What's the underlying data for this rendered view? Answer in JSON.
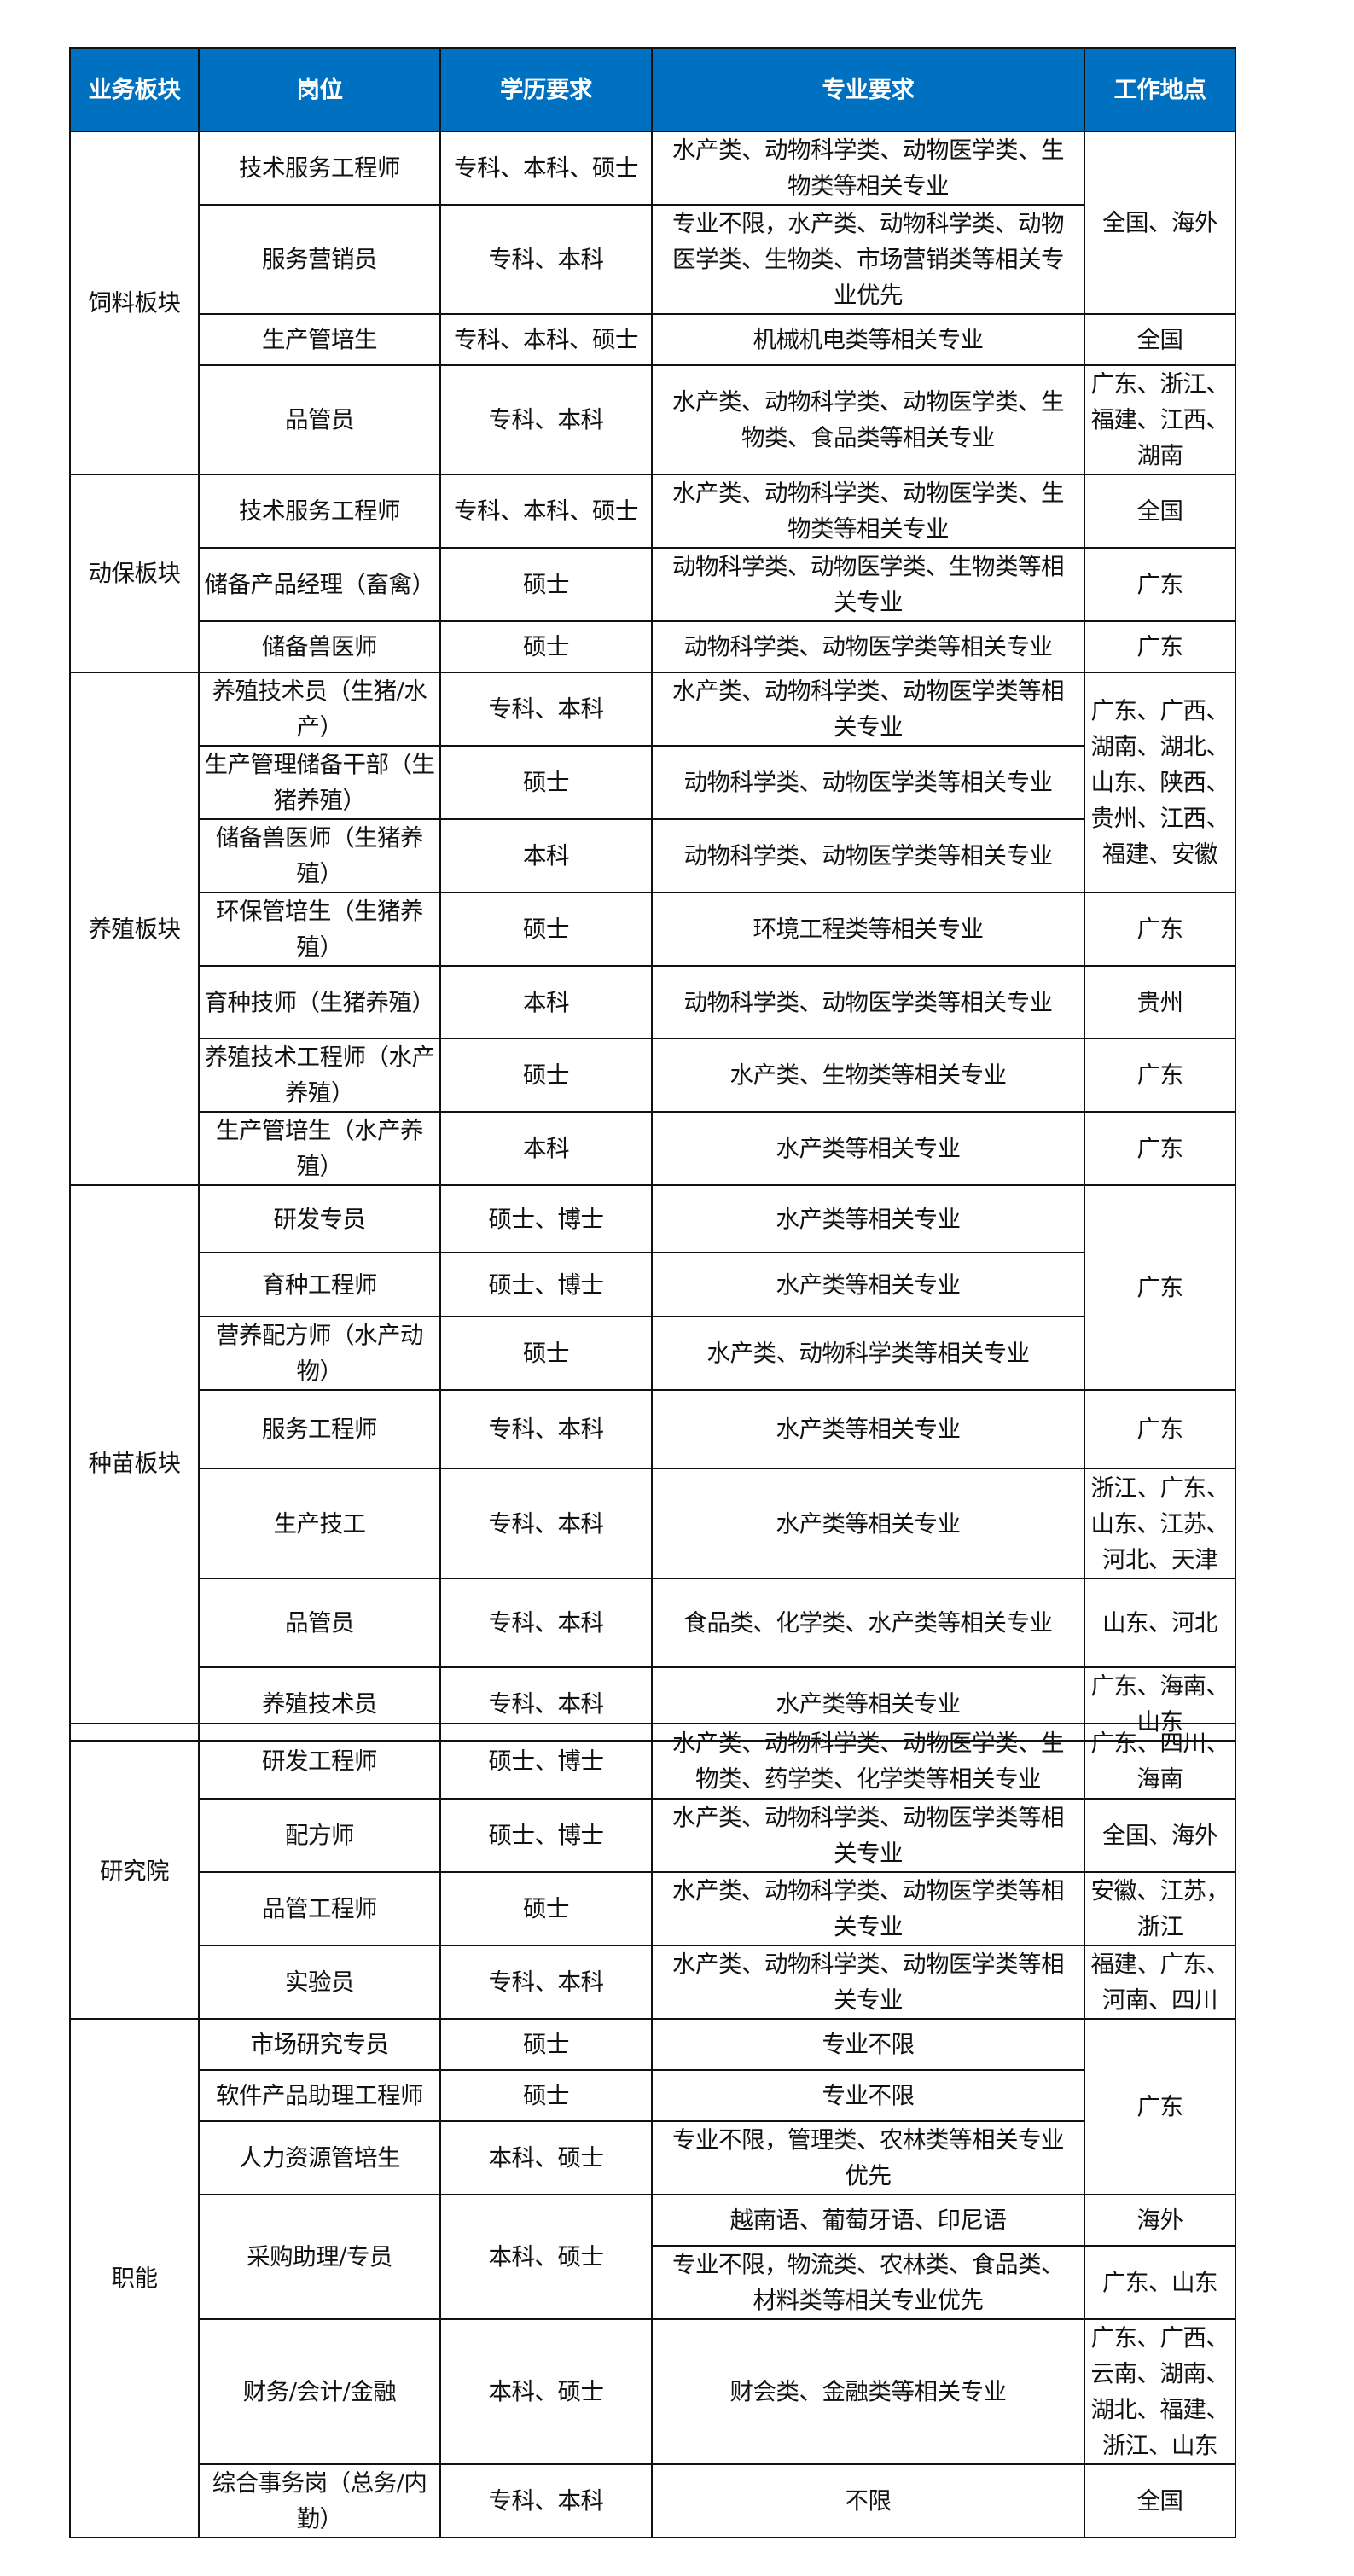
{
  "header": {
    "accent_color": "#0070c0",
    "columns": [
      "业务板块",
      "岗位",
      "学历要求",
      "专业要求",
      "工作地点"
    ]
  },
  "sections": [
    {
      "name": "饲料板块",
      "rows": [
        {
          "position": "技术服务工程师",
          "education": "专科、本科、硕士",
          "major": "水产类、动物科学类、动物医学类、生物类等相关专业",
          "location": "全国、海外",
          "location_rowspan": 2
        },
        {
          "position": "服务营销员",
          "education": "专科、本科",
          "major": "专业不限，水产类、动物科学类、动物医学类、生物类、市场营销类等相关专业优先"
        },
        {
          "position": "生产管培生",
          "education": "专科、本科、硕士",
          "major": "机械机电类等相关专业",
          "location": "全国"
        },
        {
          "position": "品管员",
          "education": "专科、本科",
          "major": "水产类、动物科学类、动物医学类、生物类、食品类等相关专业",
          "location": "广东、浙江、福建、江西、湖南"
        }
      ]
    },
    {
      "name": "动保板块",
      "rows": [
        {
          "position": "技术服务工程师",
          "education": "专科、本科、硕士",
          "major": "水产类、动物科学类、动物医学类、生物类等相关专业",
          "location": "全国"
        },
        {
          "position": "储备产品经理（畜禽）",
          "education": "硕士",
          "major": "动物科学类、动物医学类、生物类等相关专业",
          "location": "广东"
        },
        {
          "position": "储备兽医师",
          "education": "硕士",
          "major": "动物科学类、动物医学类等相关专业",
          "location": "广东"
        }
      ]
    },
    {
      "name": "养殖板块",
      "rows": [
        {
          "position": "养殖技术员（生猪/水产）",
          "education": "专科、本科",
          "major": "水产类、动物科学类、动物医学类等相关专业",
          "location": "广东、广西、湖南、湖北、山东、陕西、贵州、江西、福建、安徽",
          "location_rowspan": 3
        },
        {
          "position": "生产管理储备干部（生猪养殖）",
          "education": "硕士",
          "major": "动物科学类、动物医学类等相关专业"
        },
        {
          "position": "储备兽医师（生猪养殖）",
          "education": "本科",
          "major": "动物科学类、动物医学类等相关专业"
        },
        {
          "position": "环保管培生（生猪养殖）",
          "education": "硕士",
          "major": "环境工程类等相关专业",
          "location": "广东"
        },
        {
          "position": "育种技师（生猪养殖）",
          "education": "本科",
          "major": "动物科学类、动物医学类等相关专业",
          "location": "贵州"
        },
        {
          "position": "养殖技术工程师（水产养殖）",
          "education": "硕士",
          "major": "水产类、生物类等相关专业",
          "location": "广东"
        },
        {
          "position": "生产管培生（水产养殖）",
          "education": "本科",
          "major": "水产类等相关专业",
          "location": "广东"
        }
      ]
    },
    {
      "name": "种苗板块",
      "rows": [
        {
          "position": "研发专员",
          "education": "硕士、博士",
          "major": "水产类等相关专业",
          "location": "广东",
          "location_rowspan": 3
        },
        {
          "position": "育种工程师",
          "education": "硕士、博士",
          "major": "水产类等相关专业"
        },
        {
          "position": "营养配方师（水产动物）",
          "education": "硕士",
          "major": "水产类、动物科学类等相关专业"
        },
        {
          "position": "服务工程师",
          "education": "专科、本科",
          "major": "水产类等相关专业",
          "location": "广东"
        },
        {
          "position": "生产技工",
          "education": "专科、本科",
          "major": "水产类等相关专业",
          "location": "浙江、广东、山东、江苏、河北、天津"
        },
        {
          "position": "品管员",
          "education": "专科、本科",
          "major": "食品类、化学类、水产类等相关专业",
          "location": "山东、河北"
        },
        {
          "position": "养殖技术员",
          "education": "专科、本科",
          "major": "水产类等相关专业",
          "location": "广东、海南、山东"
        }
      ]
    },
    {
      "name": "研究院",
      "rows": [
        {
          "position": "研发工程师",
          "education": "硕士、博士",
          "major": "水产类、动物科学类、动物医学类、生物类、药学类、化学类等相关专业",
          "location": "广东、四川、海南"
        },
        {
          "position": "配方师",
          "education": "硕士、博士",
          "major": "水产类、动物科学类、动物医学类等相关专业",
          "location": "全国、海外"
        },
        {
          "position": "品管工程师",
          "education": "硕士",
          "major": "水产类、动物科学类、动物医学类等相关专业",
          "location": "安徽、江苏，浙江"
        },
        {
          "position": "实验员",
          "education": "专科、本科",
          "major": "水产类、动物科学类、动物医学类等相关专业",
          "location": "福建、广东、河南、四川"
        }
      ]
    },
    {
      "name": "职能",
      "rows": [
        {
          "position": "市场研究专员",
          "education": "硕士",
          "major": "专业不限",
          "location": "广东",
          "location_rowspan": 3
        },
        {
          "position": "软件产品助理工程师",
          "education": "硕士",
          "major": "专业不限"
        },
        {
          "position": "人力资源管培生",
          "education": "本科、硕士",
          "major": "专业不限，管理类、农林类等相关专业优先"
        },
        {
          "position": "采购助理/专员",
          "education": "本科、硕士",
          "position_rowspan": 2,
          "major": "越南语、葡萄牙语、印尼语",
          "location": "海外"
        },
        {
          "major": "专业不限，物流类、农林类、食品类、材料类等相关专业优先",
          "location": "广东、山东"
        },
        {
          "position": "财务/会计/金融",
          "education": "本科、硕士",
          "major": "财会类、金融类等相关专业",
          "location": "广东、广西、云南、湖南、湖北、福建、浙江、山东"
        },
        {
          "position": "综合事务岗（总务/内勤）",
          "education": "专科、本科",
          "major": "不限",
          "location": "全国"
        }
      ]
    }
  ]
}
